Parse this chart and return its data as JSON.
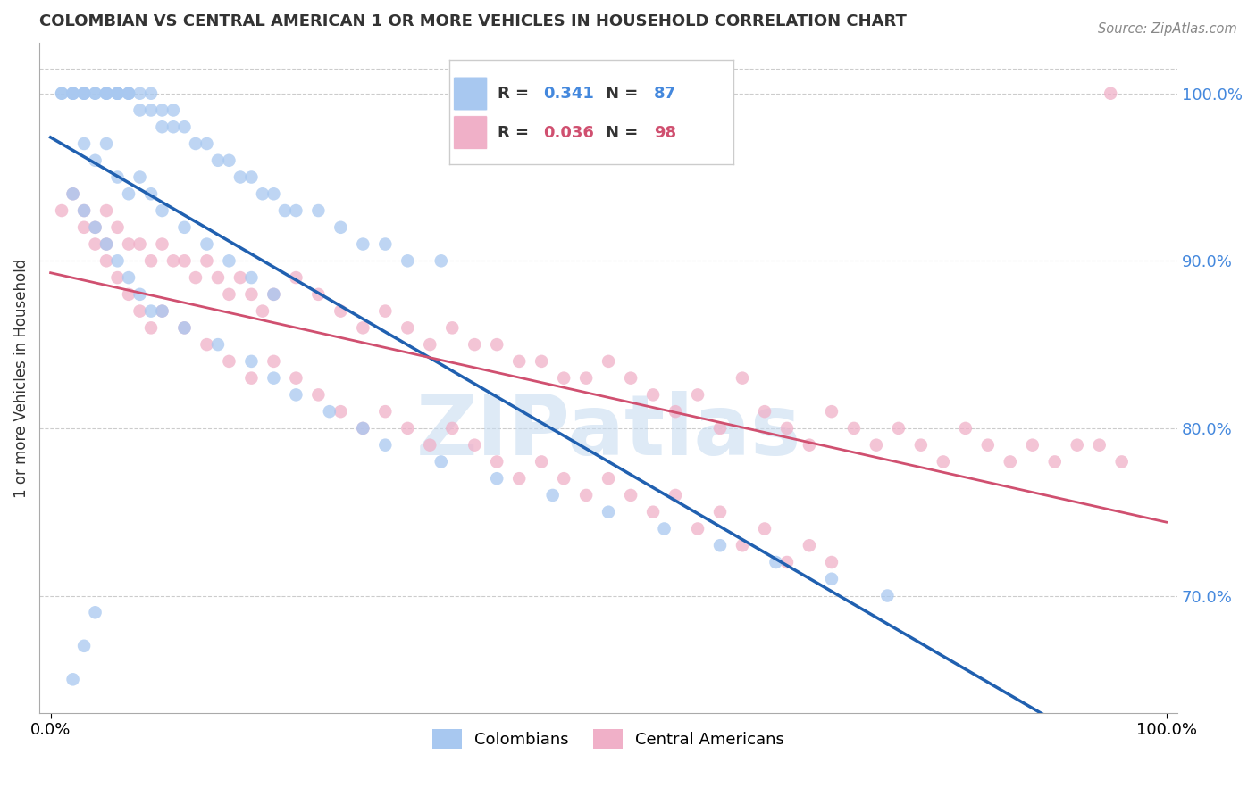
{
  "title": "COLOMBIAN VS CENTRAL AMERICAN 1 OR MORE VEHICLES IN HOUSEHOLD CORRELATION CHART",
  "source": "Source: ZipAtlas.com",
  "ylabel": "1 or more Vehicles in Household",
  "r_colombian": 0.341,
  "n_colombian": 87,
  "r_central": 0.036,
  "n_central": 98,
  "blue_color": "#A8C8F0",
  "pink_color": "#F0B0C8",
  "blue_line_color": "#2060B0",
  "pink_line_color": "#D05070",
  "right_tick_color": "#4488DD",
  "watermark_color": "#C8DCF0",
  "xlim": [
    0,
    100
  ],
  "ylim": [
    63,
    103
  ],
  "yticks": [
    70,
    80,
    90,
    100
  ],
  "blue_x": [
    1,
    1,
    2,
    2,
    2,
    3,
    3,
    3,
    4,
    4,
    5,
    5,
    5,
    6,
    6,
    6,
    6,
    7,
    7,
    7,
    8,
    8,
    9,
    9,
    10,
    10,
    11,
    11,
    12,
    13,
    14,
    15,
    16,
    17,
    18,
    19,
    20,
    21,
    22,
    24,
    26,
    28,
    30,
    32,
    35,
    3,
    4,
    5,
    6,
    7,
    8,
    9,
    10,
    12,
    14,
    16,
    18,
    20,
    2,
    3,
    4,
    5,
    6,
    7,
    8,
    9,
    10,
    12,
    15,
    18,
    20,
    22,
    25,
    28,
    30,
    35,
    40,
    45,
    50,
    55,
    60,
    65,
    70,
    75,
    2,
    3,
    4
  ],
  "blue_y": [
    100,
    100,
    100,
    100,
    100,
    100,
    100,
    100,
    100,
    100,
    100,
    100,
    100,
    100,
    100,
    100,
    100,
    100,
    100,
    100,
    100,
    99,
    100,
    99,
    99,
    98,
    99,
    98,
    98,
    97,
    97,
    96,
    96,
    95,
    95,
    94,
    94,
    93,
    93,
    93,
    92,
    91,
    91,
    90,
    90,
    97,
    96,
    97,
    95,
    94,
    95,
    94,
    93,
    92,
    91,
    90,
    89,
    88,
    94,
    93,
    92,
    91,
    90,
    89,
    88,
    87,
    87,
    86,
    85,
    84,
    83,
    82,
    81,
    80,
    79,
    78,
    77,
    76,
    75,
    74,
    73,
    72,
    71,
    70,
    65,
    67,
    69
  ],
  "pink_x": [
    1,
    2,
    3,
    3,
    4,
    5,
    5,
    6,
    7,
    8,
    9,
    10,
    11,
    12,
    13,
    14,
    15,
    16,
    17,
    18,
    19,
    20,
    22,
    24,
    26,
    28,
    30,
    32,
    34,
    36,
    38,
    40,
    42,
    44,
    46,
    48,
    50,
    52,
    54,
    56,
    58,
    60,
    62,
    64,
    66,
    68,
    70,
    72,
    74,
    76,
    78,
    80,
    82,
    84,
    86,
    88,
    90,
    92,
    94,
    96,
    4,
    5,
    6,
    7,
    8,
    9,
    10,
    12,
    14,
    16,
    18,
    20,
    22,
    24,
    26,
    28,
    30,
    32,
    34,
    36,
    38,
    40,
    42,
    44,
    46,
    48,
    50,
    52,
    54,
    56,
    58,
    60,
    62,
    64,
    66,
    68,
    70,
    95
  ],
  "pink_y": [
    93,
    94,
    93,
    92,
    92,
    93,
    91,
    92,
    91,
    91,
    90,
    91,
    90,
    90,
    89,
    90,
    89,
    88,
    89,
    88,
    87,
    88,
    89,
    88,
    87,
    86,
    87,
    86,
    85,
    86,
    85,
    85,
    84,
    84,
    83,
    83,
    84,
    83,
    82,
    81,
    82,
    80,
    83,
    81,
    80,
    79,
    81,
    80,
    79,
    80,
    79,
    78,
    80,
    79,
    78,
    79,
    78,
    79,
    79,
    78,
    91,
    90,
    89,
    88,
    87,
    86,
    87,
    86,
    85,
    84,
    83,
    84,
    83,
    82,
    81,
    80,
    81,
    80,
    79,
    80,
    79,
    78,
    77,
    78,
    77,
    76,
    77,
    76,
    75,
    76,
    74,
    75,
    73,
    74,
    72,
    73,
    72,
    100
  ]
}
